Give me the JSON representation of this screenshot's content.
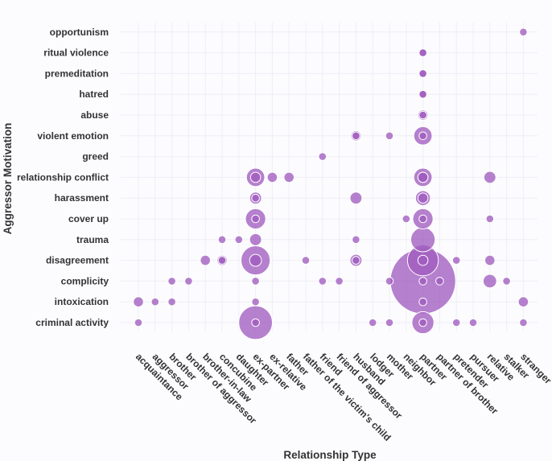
{
  "chart_data": {
    "type": "scatter",
    "subtype": "bubble",
    "xlabel": "Relationship Type",
    "ylabel": "Aggressor Motivation",
    "x_categories": [
      "acquaintance",
      "aggressor",
      "brother",
      "brother of aggressor",
      "brother-in-law",
      "concubine",
      "daughter",
      "ex-partner",
      "ex-relative",
      "father",
      "father of the victim's child",
      "friend",
      "friend of aggressor",
      "husband",
      "lodger",
      "mother",
      "neighbor",
      "partner",
      "partner of brother",
      "pretender",
      "pursuer",
      "relative",
      "stalker",
      "stranger"
    ],
    "y_categories": [
      "criminal activity",
      "intoxication",
      "complicity",
      "disagreement",
      "trauma",
      "cover up",
      "harassment",
      "relationship conflict",
      "greed",
      "violent emotion",
      "abuse",
      "hatred",
      "premeditation",
      "ritual violence",
      "opportunism"
    ],
    "size_unit": "count",
    "color": "#a05cbf",
    "points": [
      {
        "x": "acquaintance",
        "y": "criminal activity",
        "size": 1
      },
      {
        "x": "acquaintance",
        "y": "intoxication",
        "size": 2
      },
      {
        "x": "aggressor",
        "y": "intoxication",
        "size": 1
      },
      {
        "x": "brother",
        "y": "intoxication",
        "size": 1
      },
      {
        "x": "brother",
        "y": "complicity",
        "size": 1
      },
      {
        "x": "brother of aggressor",
        "y": "complicity",
        "size": 1
      },
      {
        "x": "brother-in-law",
        "y": "disagreement",
        "size": 2
      },
      {
        "x": "concubine",
        "y": "disagreement",
        "size": 2
      },
      {
        "x": "concubine",
        "y": "trauma",
        "size": 1
      },
      {
        "x": "concubine",
        "y": "disagreement",
        "size": 1
      },
      {
        "x": "daughter",
        "y": "trauma",
        "size": 1
      },
      {
        "x": "ex-partner",
        "y": "criminal activity",
        "size": 30
      },
      {
        "x": "ex-partner",
        "y": "criminal activity",
        "size": 1
      },
      {
        "x": "ex-partner",
        "y": "intoxication",
        "size": 1
      },
      {
        "x": "ex-partner",
        "y": "complicity",
        "size": 1
      },
      {
        "x": "ex-partner",
        "y": "disagreement",
        "size": 22
      },
      {
        "x": "ex-partner",
        "y": "disagreement",
        "size": 3
      },
      {
        "x": "ex-partner",
        "y": "trauma",
        "size": 3
      },
      {
        "x": "ex-partner",
        "y": "cover up",
        "size": 1
      },
      {
        "x": "ex-partner",
        "y": "cover up",
        "size": 10
      },
      {
        "x": "ex-partner",
        "y": "harassment",
        "size": 1
      },
      {
        "x": "ex-partner",
        "y": "harassment",
        "size": 3
      },
      {
        "x": "ex-partner",
        "y": "relationship conflict",
        "size": 8
      },
      {
        "x": "ex-partner",
        "y": "relationship conflict",
        "size": 2
      },
      {
        "x": "ex-relative",
        "y": "relationship conflict",
        "size": 2
      },
      {
        "x": "father",
        "y": "relationship conflict",
        "size": 2
      },
      {
        "x": "father of the victim's child",
        "y": "disagreement",
        "size": 1
      },
      {
        "x": "friend",
        "y": "greed",
        "size": 1
      },
      {
        "x": "friend",
        "y": "complicity",
        "size": 1
      },
      {
        "x": "friend of aggressor",
        "y": "complicity",
        "size": 1
      },
      {
        "x": "husband",
        "y": "violent emotion",
        "size": 2
      },
      {
        "x": "husband",
        "y": "violent emotion",
        "size": 1
      },
      {
        "x": "husband",
        "y": "harassment",
        "size": 3
      },
      {
        "x": "husband",
        "y": "trauma",
        "size": 1
      },
      {
        "x": "husband",
        "y": "disagreement",
        "size": 1
      },
      {
        "x": "husband",
        "y": "disagreement",
        "size": 3
      },
      {
        "x": "lodger",
        "y": "criminal activity",
        "size": 1
      },
      {
        "x": "mother",
        "y": "violent emotion",
        "size": 1
      },
      {
        "x": "mother",
        "y": "complicity",
        "size": 1
      },
      {
        "x": "mother",
        "y": "criminal activity",
        "size": 1
      },
      {
        "x": "neighbor",
        "y": "cover up",
        "size": 1
      },
      {
        "x": "partner",
        "y": "ritual violence",
        "size": 1
      },
      {
        "x": "partner",
        "y": "ritual violence",
        "size": 1
      },
      {
        "x": "partner",
        "y": "premeditation",
        "size": 1
      },
      {
        "x": "partner",
        "y": "premeditation",
        "size": 1
      },
      {
        "x": "partner",
        "y": "hatred",
        "size": 1
      },
      {
        "x": "partner",
        "y": "hatred",
        "size": 1
      },
      {
        "x": "partner",
        "y": "abuse",
        "size": 1
      },
      {
        "x": "partner",
        "y": "abuse",
        "size": 2
      },
      {
        "x": "partner",
        "y": "violent emotion",
        "size": 1
      },
      {
        "x": "partner",
        "y": "violent emotion",
        "size": 8
      },
      {
        "x": "partner",
        "y": "relationship conflict",
        "size": 2
      },
      {
        "x": "partner",
        "y": "relationship conflict",
        "size": 8
      },
      {
        "x": "partner",
        "y": "relationship conflict",
        "size": 2
      },
      {
        "x": "partner",
        "y": "harassment",
        "size": 2
      },
      {
        "x": "partner",
        "y": "harassment",
        "size": 5
      },
      {
        "x": "partner",
        "y": "cover up",
        "size": 10
      },
      {
        "x": "partner",
        "y": "cover up",
        "size": 1
      },
      {
        "x": "partner",
        "y": "trauma",
        "size": 15
      },
      {
        "x": "partner",
        "y": "disagreement",
        "size": 2
      },
      {
        "x": "partner",
        "y": "disagreement",
        "size": 25
      },
      {
        "x": "partner",
        "y": "complicity",
        "size": 120
      },
      {
        "x": "partner",
        "y": "complicity",
        "size": 1
      },
      {
        "x": "partner",
        "y": "intoxication",
        "size": 1
      },
      {
        "x": "partner",
        "y": "criminal activity",
        "size": 12
      },
      {
        "x": "partner",
        "y": "criminal activity",
        "size": 1
      },
      {
        "x": "partner of brother",
        "y": "complicity",
        "size": 1
      },
      {
        "x": "pretender",
        "y": "disagreement",
        "size": 1
      },
      {
        "x": "pretender",
        "y": "criminal activity",
        "size": 1
      },
      {
        "x": "pursuer",
        "y": "criminal activity",
        "size": 1
      },
      {
        "x": "relative",
        "y": "relationship conflict",
        "size": 3
      },
      {
        "x": "relative",
        "y": "cover up",
        "size": 1
      },
      {
        "x": "relative",
        "y": "disagreement",
        "size": 2
      },
      {
        "x": "relative",
        "y": "complicity",
        "size": 4
      },
      {
        "x": "stalker",
        "y": "complicity",
        "size": 1
      },
      {
        "x": "stranger",
        "y": "opportunism",
        "size": 1
      },
      {
        "x": "stranger",
        "y": "intoxication",
        "size": 2
      },
      {
        "x": "stranger",
        "y": "criminal activity",
        "size": 1
      }
    ]
  }
}
